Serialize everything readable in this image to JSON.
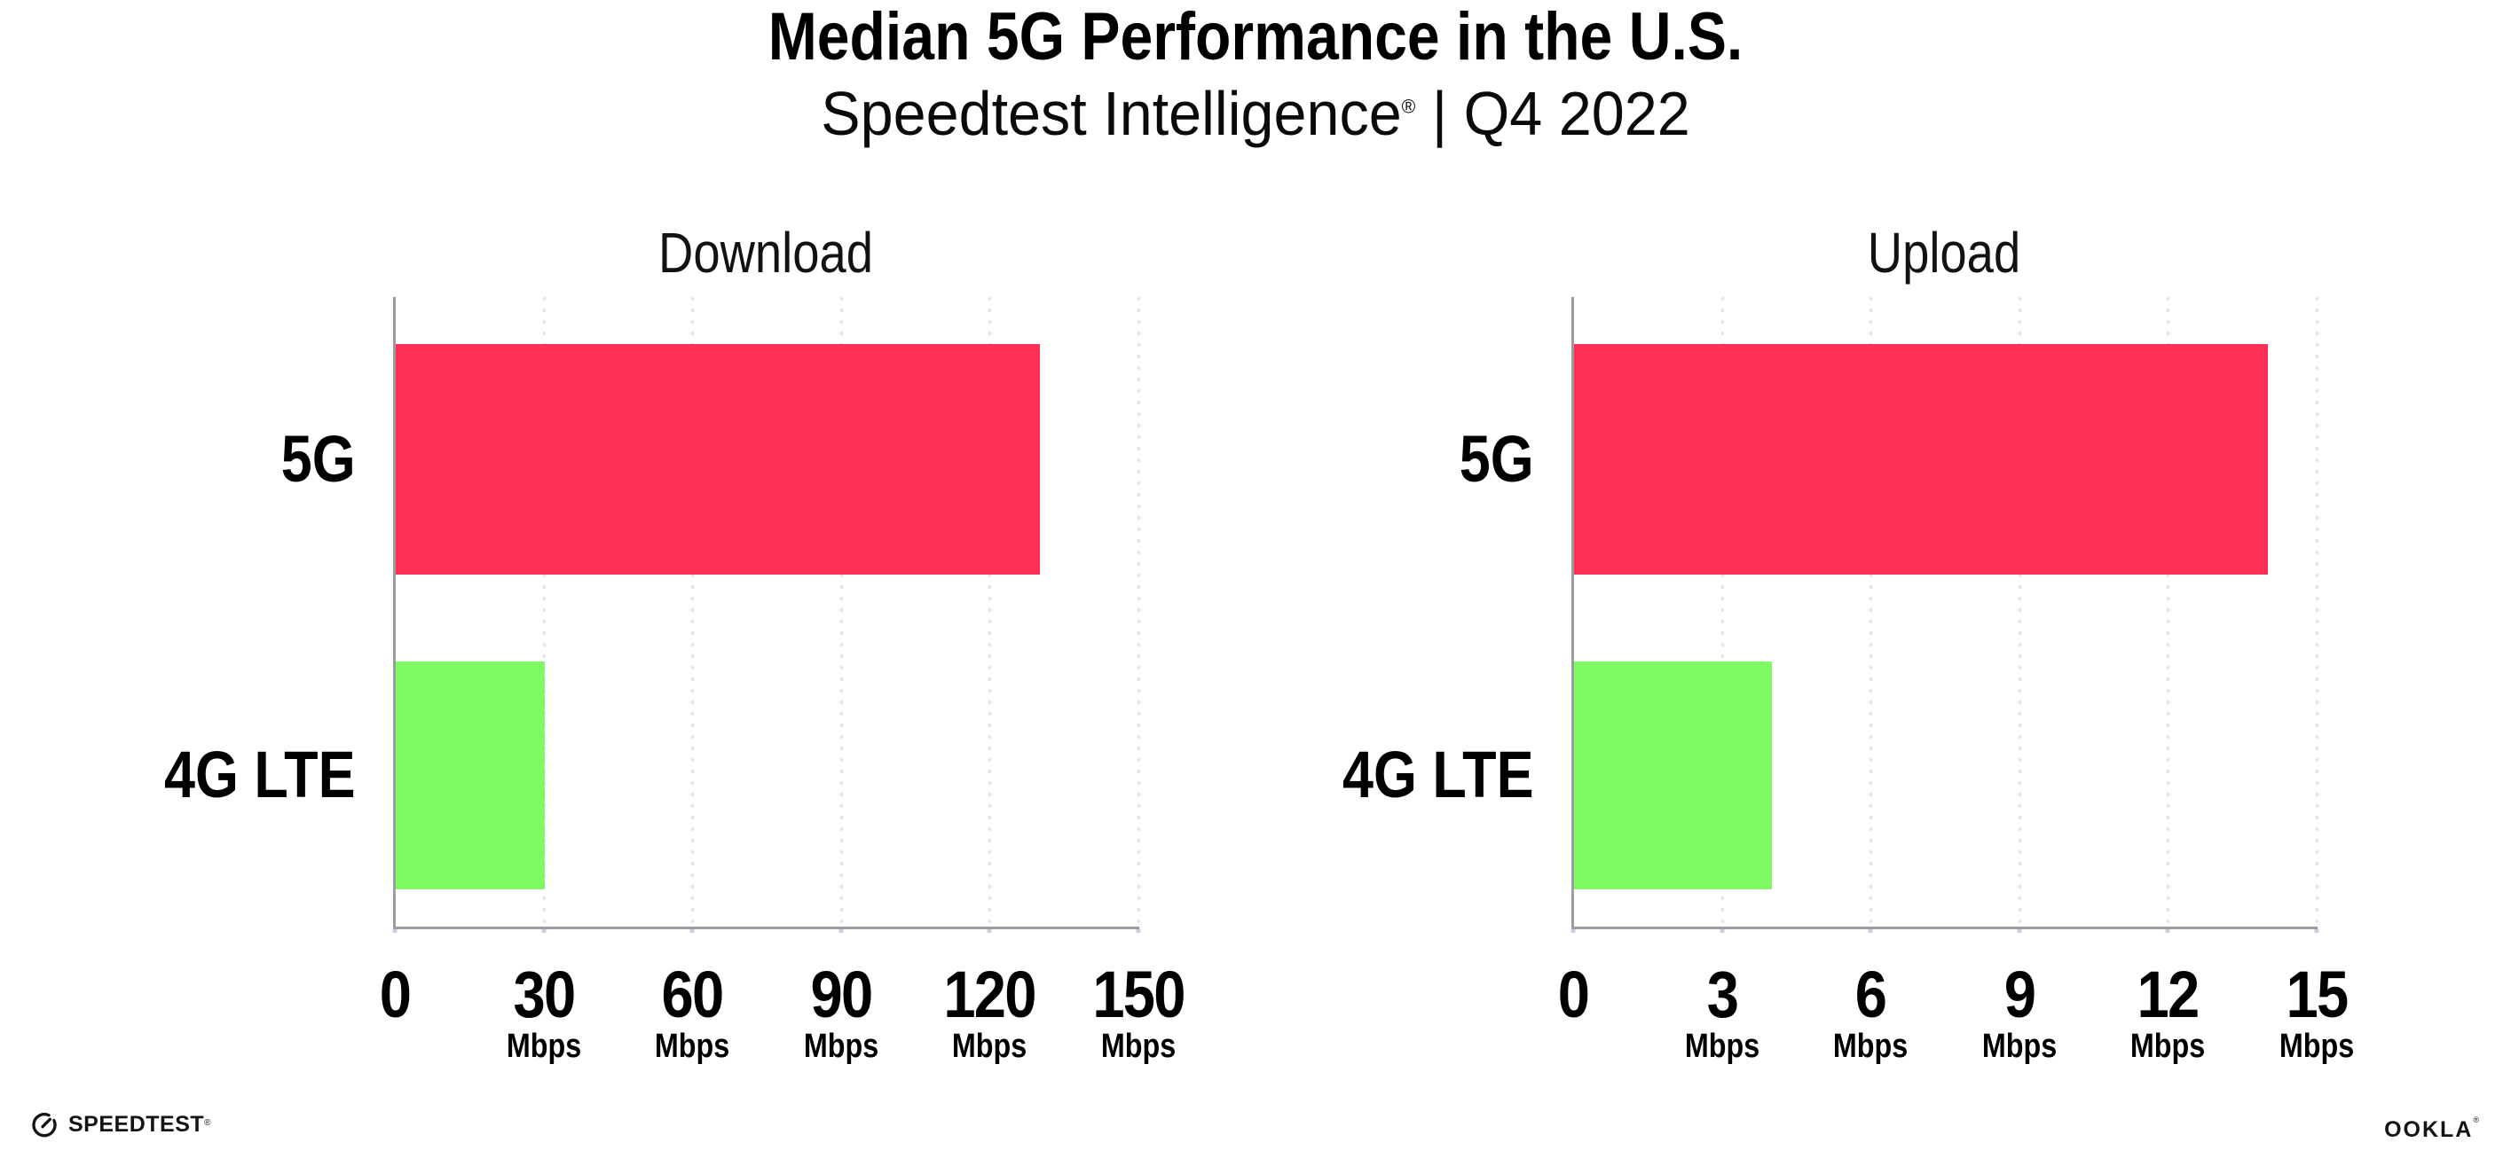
{
  "header": {
    "title": "Median 5G Performance in the U.S.",
    "subtitle_brand": "Speedtest Intelligence",
    "subtitle_reg": "®",
    "subtitle_rest": " | Q4 2022"
  },
  "colors": {
    "bar_5g": "#ff2f55",
    "bar_4g_lte": "#7dfa64",
    "axis_line": "#9c9ca2",
    "gridline": "#e2e4ef",
    "tick_mark": "#c9cede",
    "text": "#000000"
  },
  "chart_data": [
    {
      "type": "bar",
      "orientation": "horizontal",
      "title": "Download",
      "categories": [
        "5G",
        "4G LTE"
      ],
      "values": [
        130,
        30
      ],
      "unit": "Mbps",
      "xlim": [
        0,
        150
      ],
      "xticks": [
        0,
        30,
        60,
        90,
        120,
        150
      ],
      "grid": "dotted-vertical",
      "legend": "none",
      "bar_colors": [
        "#ff2f55",
        "#7dfa64"
      ]
    },
    {
      "type": "bar",
      "orientation": "horizontal",
      "title": "Upload",
      "categories": [
        "5G",
        "4G LTE"
      ],
      "values": [
        14,
        4
      ],
      "unit": "Mbps",
      "xlim": [
        0,
        15
      ],
      "xticks": [
        0,
        3,
        6,
        9,
        12,
        15
      ],
      "grid": "dotted-vertical",
      "legend": "none",
      "bar_colors": [
        "#ff2f55",
        "#7dfa64"
      ]
    }
  ],
  "footer": {
    "speedtest_label": "SPEEDTEST",
    "speedtest_mark": "®",
    "ookla_label": "OOKLA",
    "ookla_mark": "®"
  }
}
